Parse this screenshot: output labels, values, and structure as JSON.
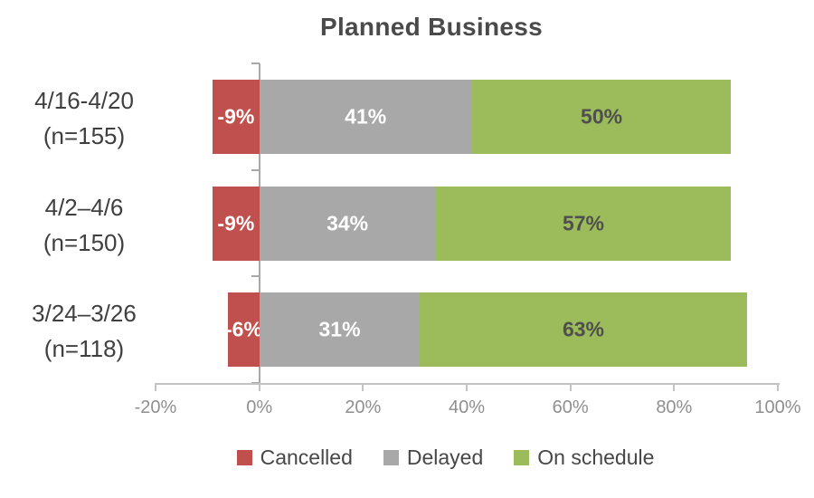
{
  "chart_data": {
    "type": "bar",
    "orientation": "horizontal",
    "stacked": true,
    "title": "Planned Business",
    "categories": [
      {
        "label": "4/16-4/20",
        "sublabel": "(n=155)"
      },
      {
        "label": "4/2–4/6",
        "sublabel": "(n=150)"
      },
      {
        "label": "3/24–3/26",
        "sublabel": "(n=118)"
      }
    ],
    "series": [
      {
        "name": "Cancelled",
        "color": "#c0504d",
        "label_color": "#ffffff",
        "values": [
          -9,
          -9,
          -6
        ],
        "labels": [
          "-9%",
          "-9%",
          "-6%"
        ]
      },
      {
        "name": "Delayed",
        "color": "#a8a8a8",
        "label_color": "#ffffff",
        "values": [
          41,
          34,
          31
        ],
        "labels": [
          "41%",
          "34%",
          "31%"
        ]
      },
      {
        "name": "On schedule",
        "color": "#9cbb5b",
        "label_color": "#4f4f4f",
        "values": [
          50,
          57,
          63
        ],
        "labels": [
          "50%",
          "57%",
          "63%"
        ]
      }
    ],
    "x_axis": {
      "min": -20,
      "max": 100,
      "tick_step": 20,
      "tick_labels": [
        "-20%",
        "0%",
        "20%",
        "40%",
        "60%",
        "80%",
        "100%"
      ]
    },
    "legend": {
      "position": "bottom",
      "entries": [
        "Cancelled",
        "Delayed",
        "On schedule"
      ]
    },
    "grid": false
  },
  "colors": {
    "background": "#ffffff",
    "title_text": "#4a4a4a",
    "category_text": "#3f3f3f",
    "axis_line": "#c3c3c3",
    "axis_tick_text": "#8f8f8f",
    "zero_line": "#a8a8a8"
  }
}
